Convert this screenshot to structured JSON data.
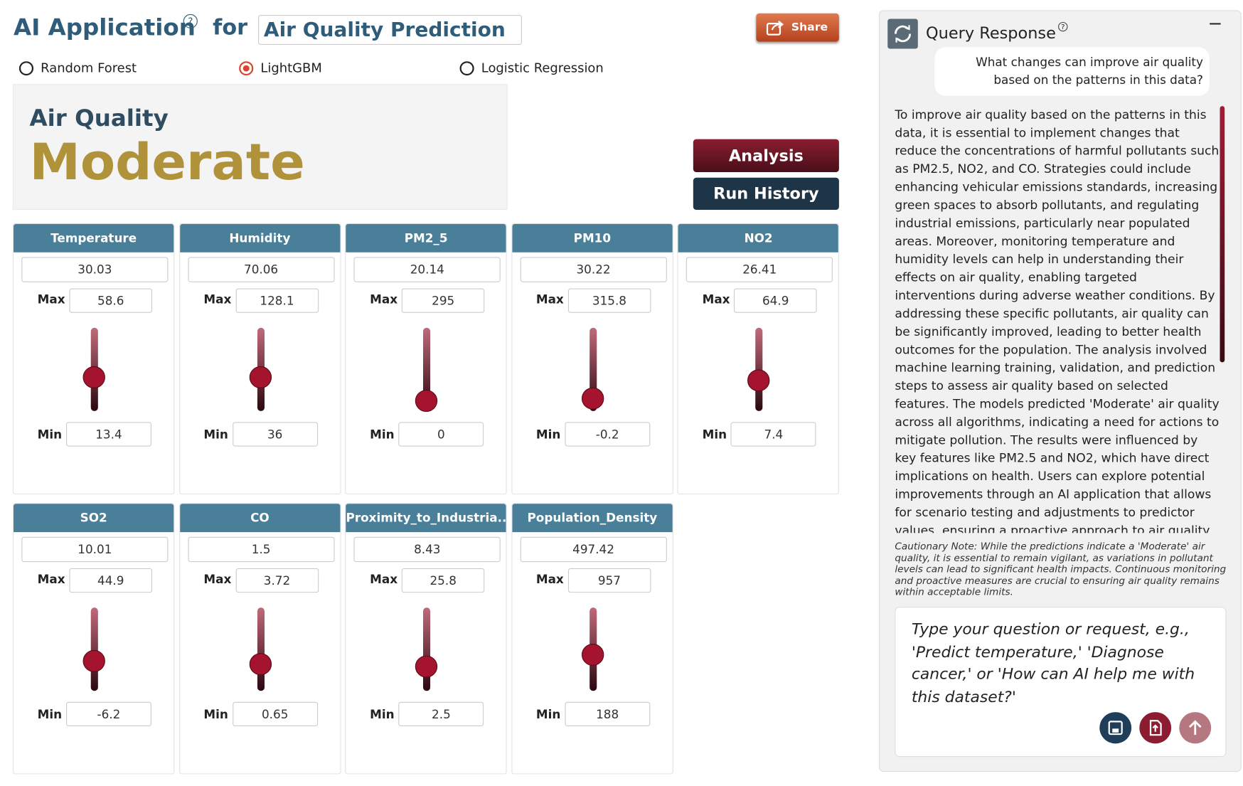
{
  "header": {
    "title": "AI Application",
    "connector": "for",
    "app_name": "Air Quality Prediction",
    "share": "Share"
  },
  "models": {
    "options": [
      "Random Forest",
      "LightGBM",
      "Logistic Regression"
    ],
    "selected": 1
  },
  "result": {
    "label": "Air Quality",
    "prediction": "Moderate"
  },
  "buttons": {
    "analysis": "Analysis",
    "run_history": "Run History"
  },
  "feature_labels": {
    "max": "Max",
    "min": "Min"
  },
  "features": [
    {
      "name": "Temperature",
      "value": 30.03,
      "max": 58.6,
      "min": 13.4
    },
    {
      "name": "Humidity",
      "value": 70.06,
      "max": 128.1,
      "min": 36
    },
    {
      "name": "PM2_5",
      "value": 20.14,
      "max": 295,
      "min": 0
    },
    {
      "name": "PM10",
      "value": 30.22,
      "max": 315.8,
      "min": -0.2
    },
    {
      "name": "NO2",
      "value": 26.41,
      "max": 64.9,
      "min": 7.4
    },
    {
      "name": "SO2",
      "value": 10.01,
      "max": 44.9,
      "min": -6.2
    },
    {
      "name": "CO",
      "value": 1.5,
      "max": 3.72,
      "min": 0.65
    },
    {
      "name": "Proximity_to_Industria...",
      "value": 8.43,
      "max": 25.8,
      "min": 2.5
    },
    {
      "name": "Population_Density",
      "value": 497.42,
      "max": 957,
      "min": 188
    }
  ],
  "panel": {
    "title": "Query Response",
    "question": "What changes can improve air quality based on the patterns in this data?",
    "answer": "To improve air quality based on the patterns in this data, it is essential to implement changes that reduce the concentrations of harmful pollutants such as PM2.5, NO2, and CO. Strategies could include enhancing vehicular emissions standards, increasing green spaces to absorb pollutants, and regulating industrial emissions, particularly near populated areas. Moreover, monitoring temperature and humidity levels can help in understanding their effects on air quality, enabling targeted interventions during adverse weather conditions. By addressing these specific pollutants, air quality can be significantly improved, leading to better health outcomes for the population. The analysis involved machine learning training, validation, and prediction steps to assess air quality based on selected features. The models predicted 'Moderate' air quality across all algorithms, indicating a need for actions to mitigate pollution. The results were influenced by key features like PM2.5 and NO2, which have direct implications on health. Users can explore potential improvements through an AI application that allows for scenario testing and adjustments to predictor values, ensuring a proactive approach to air quality",
    "caution": "Cautionary Note: While the predictions indicate a 'Moderate' air quality, it is essential to remain vigilant, as variations in pollutant levels can lead to significant health impacts. Continuous monitoring and proactive measures are crucial to ensuring air quality remains within acceptable limits.",
    "placeholder": "Type your question or request, e.g., 'Predict temperature,' 'Diagnose cancer,' or 'How can AI help me with this dataset?'"
  }
}
